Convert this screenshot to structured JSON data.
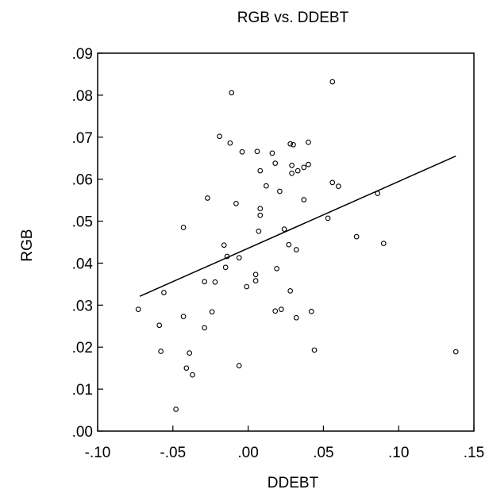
{
  "chart_data": {
    "type": "scatter",
    "title": "RGB vs. DDEBT",
    "xlabel": "DDEBT",
    "ylabel": "RGB",
    "xlim": [
      -0.1,
      0.15
    ],
    "ylim": [
      0.0,
      0.09
    ],
    "x_ticks": [
      -0.1,
      -0.05,
      0.0,
      0.05,
      0.1,
      0.15
    ],
    "x_tick_labels": [
      "-.10",
      "-.05",
      ".00",
      ".05",
      ".10",
      ".15"
    ],
    "y_ticks": [
      0.0,
      0.01,
      0.02,
      0.03,
      0.04,
      0.05,
      0.06,
      0.07,
      0.08,
      0.09
    ],
    "y_tick_labels": [
      ".00",
      ".01",
      ".02",
      ".03",
      ".04",
      ".05",
      ".06",
      ".07",
      ".08",
      ".09"
    ],
    "grid": false,
    "legend": "none",
    "points": [
      {
        "x": -0.073,
        "y": 0.029
      },
      {
        "x": -0.059,
        "y": 0.0252
      },
      {
        "x": -0.058,
        "y": 0.019
      },
      {
        "x": -0.056,
        "y": 0.033
      },
      {
        "x": -0.048,
        "y": 0.0052
      },
      {
        "x": -0.043,
        "y": 0.0485
      },
      {
        "x": -0.043,
        "y": 0.0273
      },
      {
        "x": -0.041,
        "y": 0.015
      },
      {
        "x": -0.039,
        "y": 0.0186
      },
      {
        "x": -0.037,
        "y": 0.0134
      },
      {
        "x": -0.029,
        "y": 0.0356
      },
      {
        "x": -0.029,
        "y": 0.0246
      },
      {
        "x": -0.027,
        "y": 0.0555
      },
      {
        "x": -0.024,
        "y": 0.0284
      },
      {
        "x": -0.022,
        "y": 0.0355
      },
      {
        "x": -0.019,
        "y": 0.0702
      },
      {
        "x": -0.016,
        "y": 0.0443
      },
      {
        "x": -0.015,
        "y": 0.039
      },
      {
        "x": -0.014,
        "y": 0.0416
      },
      {
        "x": -0.012,
        "y": 0.0686
      },
      {
        "x": -0.011,
        "y": 0.0806
      },
      {
        "x": -0.008,
        "y": 0.0542
      },
      {
        "x": -0.006,
        "y": 0.0413
      },
      {
        "x": -0.006,
        "y": 0.0156
      },
      {
        "x": -0.004,
        "y": 0.0665
      },
      {
        "x": -0.001,
        "y": 0.0344
      },
      {
        "x": 0.005,
        "y": 0.0373
      },
      {
        "x": 0.005,
        "y": 0.0358
      },
      {
        "x": 0.006,
        "y": 0.0666
      },
      {
        "x": 0.007,
        "y": 0.0476
      },
      {
        "x": 0.008,
        "y": 0.062
      },
      {
        "x": 0.008,
        "y": 0.053
      },
      {
        "x": 0.008,
        "y": 0.0514
      },
      {
        "x": 0.012,
        "y": 0.0584
      },
      {
        "x": 0.016,
        "y": 0.0662
      },
      {
        "x": 0.018,
        "y": 0.0638
      },
      {
        "x": 0.018,
        "y": 0.0286
      },
      {
        "x": 0.019,
        "y": 0.0387
      },
      {
        "x": 0.021,
        "y": 0.0571
      },
      {
        "x": 0.022,
        "y": 0.029
      },
      {
        "x": 0.024,
        "y": 0.0481
      },
      {
        "x": 0.027,
        "y": 0.0444
      },
      {
        "x": 0.028,
        "y": 0.0684
      },
      {
        "x": 0.028,
        "y": 0.0334
      },
      {
        "x": 0.029,
        "y": 0.0633
      },
      {
        "x": 0.029,
        "y": 0.0614
      },
      {
        "x": 0.03,
        "y": 0.0682
      },
      {
        "x": 0.032,
        "y": 0.0432
      },
      {
        "x": 0.032,
        "y": 0.027
      },
      {
        "x": 0.033,
        "y": 0.062
      },
      {
        "x": 0.037,
        "y": 0.0551
      },
      {
        "x": 0.037,
        "y": 0.0628
      },
      {
        "x": 0.04,
        "y": 0.0688
      },
      {
        "x": 0.04,
        "y": 0.0635
      },
      {
        "x": 0.042,
        "y": 0.0285
      },
      {
        "x": 0.044,
        "y": 0.0193
      },
      {
        "x": 0.053,
        "y": 0.0507
      },
      {
        "x": 0.056,
        "y": 0.0832
      },
      {
        "x": 0.056,
        "y": 0.0592
      },
      {
        "x": 0.06,
        "y": 0.0583
      },
      {
        "x": 0.072,
        "y": 0.0463
      },
      {
        "x": 0.086,
        "y": 0.0566
      },
      {
        "x": 0.09,
        "y": 0.0447
      },
      {
        "x": 0.138,
        "y": 0.0189
      }
    ],
    "fit_line": {
      "x": [
        -0.072,
        0.138
      ],
      "y": [
        0.0321,
        0.0655
      ]
    }
  }
}
